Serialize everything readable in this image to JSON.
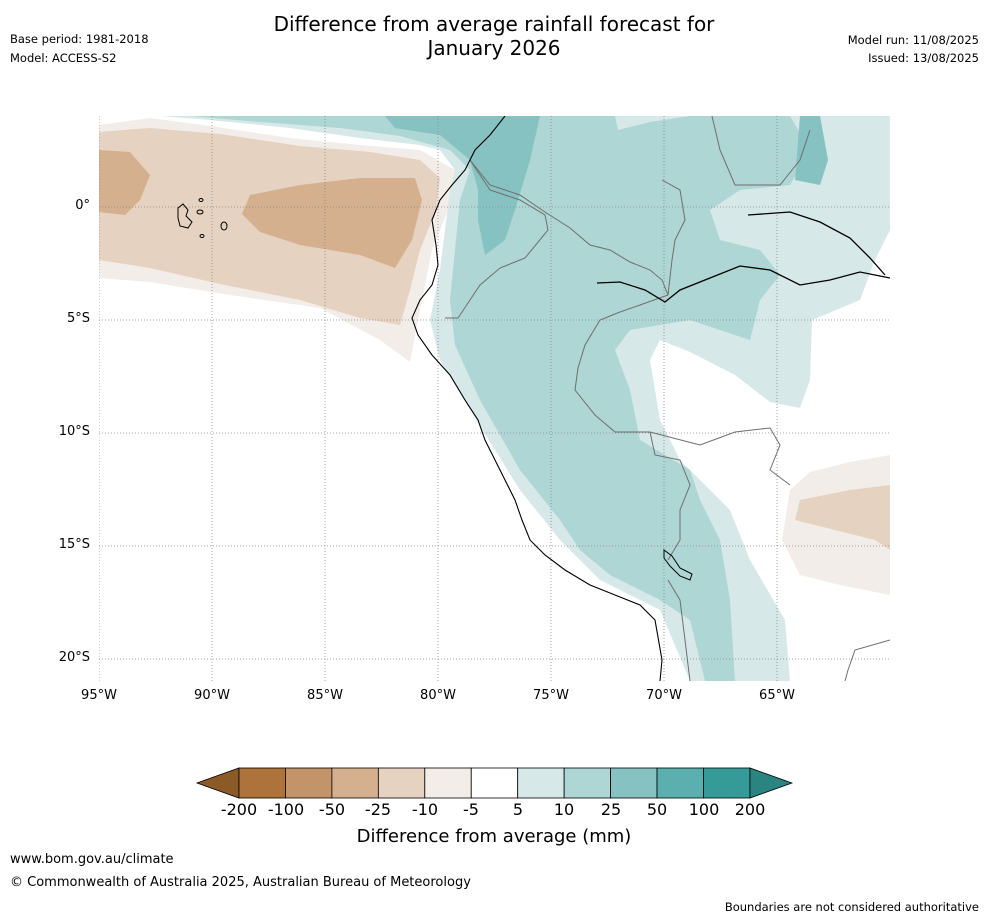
{
  "header": {
    "base_period": "Base period: 1981-2018",
    "model": "Model: ACCESS-S2",
    "title_line1": "Difference from average rainfall forecast for",
    "title_line2": "January 2026",
    "model_run": "Model run: 11/08/2025",
    "issued": "Issued: 13/08/2025"
  },
  "map": {
    "lat_labels": [
      "0°",
      "5°S",
      "10°S",
      "15°S",
      "20°S"
    ],
    "lon_labels": [
      "95°W",
      "90°W",
      "85°W",
      "80°W",
      "75°W",
      "70°W",
      "65°W"
    ],
    "features": [
      "coastline",
      "country-borders",
      "rivers",
      "galapagos-islands",
      "lake-titicaca"
    ]
  },
  "colorbar": {
    "labels": [
      "-200",
      "-100",
      "-50",
      "-25",
      "-10",
      "-5",
      "5",
      "10",
      "25",
      "50",
      "100",
      "200"
    ],
    "colors": [
      "#8c5a26",
      "#ad733a",
      "#c39469",
      "#d4b08e",
      "#e6d2c0",
      "#f2ede8",
      "#ffffff",
      "#d6e8e8",
      "#aed6d5",
      "#85c2c1",
      "#5bafae",
      "#359b98",
      "#2a8582"
    ],
    "title": "Difference from average (mm)"
  },
  "footer": {
    "url": "www.bom.gov.au/climate",
    "copyright": "© Commonwealth of Australia 2025, Australian Bureau of Meteorology",
    "disclaimer": "Boundaries are not considered authoritative"
  }
}
